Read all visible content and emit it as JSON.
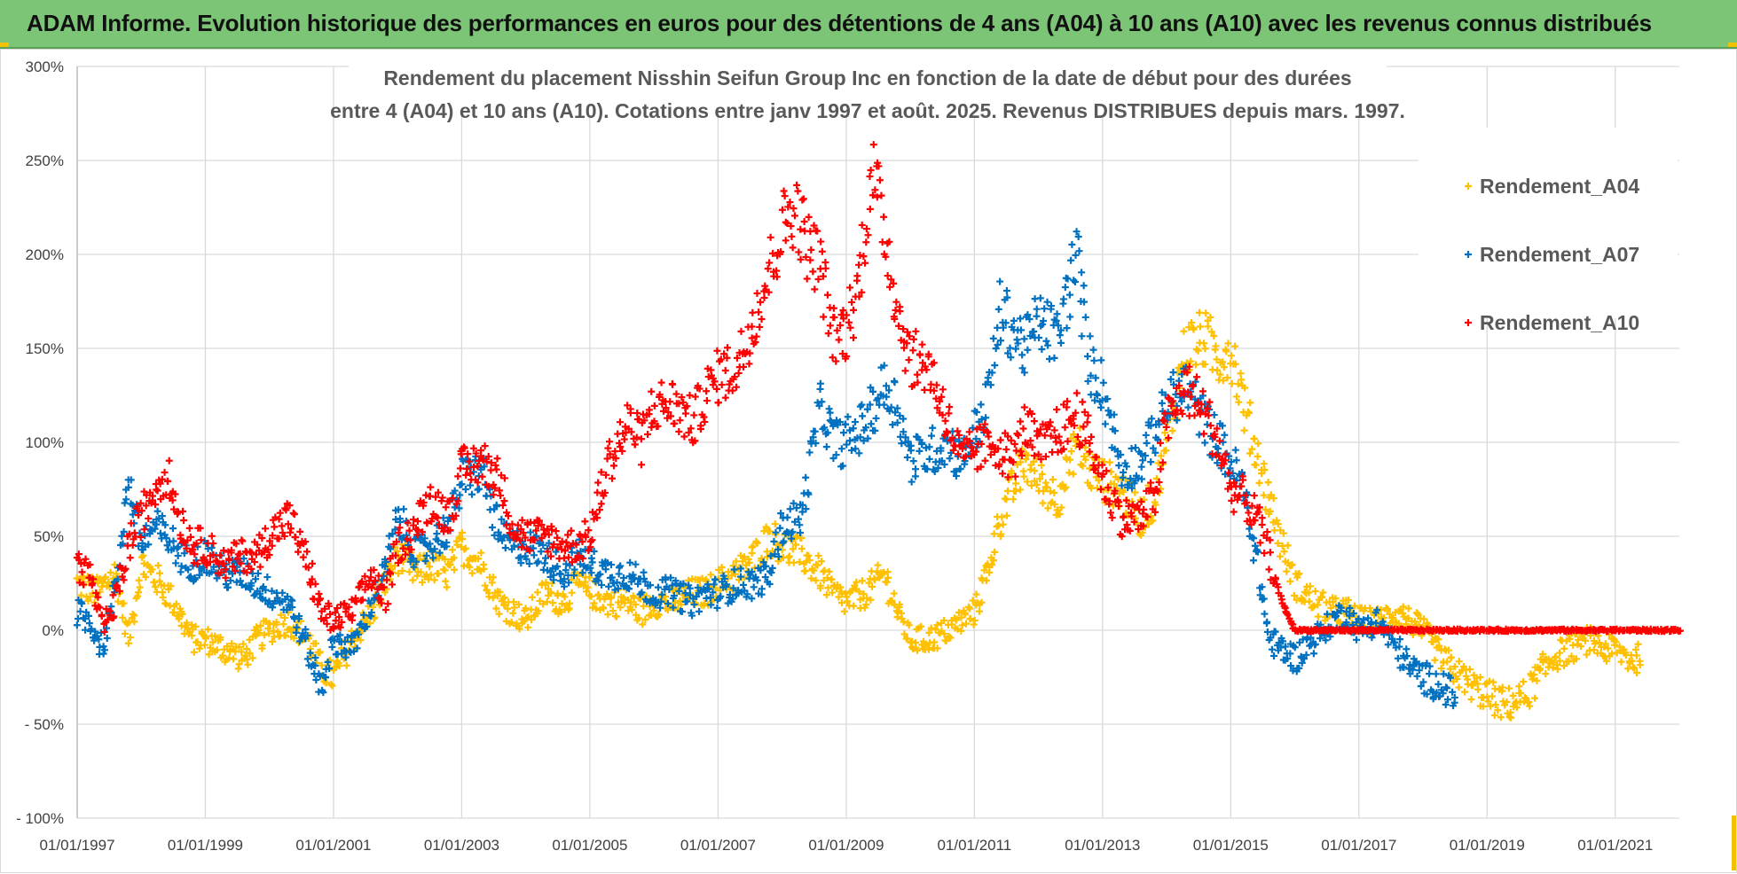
{
  "banner": {
    "title": "ADAM Informe. Evolution historique des performances en euros pour des détentions de 4 ans (A04) à 10 ans (A10) avec les revenus connus distribués"
  },
  "colors": {
    "banner": "#7cc576",
    "A04": "#ffc000",
    "A07": "#0070c0",
    "A10": "#ff0000",
    "grid": "#d9d9d9"
  },
  "chart_data": {
    "type": "scatter",
    "title_lines": [
      "Rendement du placement Nisshin Seifun Group Inc en fonction de la date de début pour des durées",
      "entre 4 (A04) et 10 ans (A10). Cotations entre janv 1997 et août. 2025. Revenus DISTRIBUES depuis mars. 1997."
    ],
    "xlabel": "",
    "ylabel": "",
    "x_tick_labels": [
      "01/01/1997",
      "01/01/1999",
      "01/01/2001",
      "01/01/2003",
      "01/01/2005",
      "01/01/2007",
      "01/01/2009",
      "01/01/2011",
      "01/01/2013",
      "01/01/2015",
      "01/01/2017",
      "01/01/2019",
      "01/01/2021"
    ],
    "xlim": [
      1997.0,
      2022.0
    ],
    "y_tick_values": [
      300,
      250,
      200,
      150,
      100,
      50,
      0,
      -50,
      -100
    ],
    "y_tick_labels": [
      "300%",
      "250%",
      "200%",
      "150%",
      "100%",
      "50%",
      "0%",
      "- 50%",
      "- 100%"
    ],
    "ylim": [
      -100,
      300
    ],
    "grid": true,
    "legend_position": "top-right",
    "marker": "+",
    "series": [
      {
        "name": "Rendement_A04",
        "color": "#ffc000",
        "x": [
          1997.0,
          1997.3,
          1997.6,
          1997.8,
          1998.0,
          1998.3,
          1998.5,
          1998.8,
          1999.0,
          1999.3,
          1999.6,
          1999.8,
          2000.0,
          2000.3,
          2000.6,
          2000.8,
          2001.0,
          2001.3,
          2001.6,
          2001.8,
          2002.0,
          2002.3,
          2002.5,
          2002.8,
          2003.0,
          2003.3,
          2003.6,
          2003.8,
          2004.0,
          2004.3,
          2004.6,
          2004.8,
          2005.0,
          2005.3,
          2005.6,
          2005.8,
          2006.0,
          2006.3,
          2006.6,
          2006.8,
          2007.0,
          2007.3,
          2007.6,
          2007.8,
          2008.0,
          2008.3,
          2008.6,
          2008.8,
          2009.0,
          2009.3,
          2009.6,
          2009.8,
          2010.0,
          2010.3,
          2010.6,
          2010.8,
          2011.0,
          2011.2,
          2011.4,
          2011.6,
          2011.8,
          2012.0,
          2012.3,
          2012.6,
          2012.8,
          2013.0,
          2013.3,
          2013.6,
          2013.8,
          2014.0,
          2014.3,
          2014.6,
          2014.8,
          2015.0,
          2015.2,
          2015.4,
          2015.6,
          2015.8,
          2016.0,
          2016.3,
          2016.6,
          2016.8,
          2017.0,
          2017.3,
          2017.6,
          2017.8,
          2018.0,
          2018.3,
          2018.6,
          2018.8,
          2019.0,
          2019.3,
          2019.6,
          2019.8,
          2020.0,
          2020.3,
          2020.6,
          2020.8,
          2021.0,
          2021.2,
          2021.4
        ],
        "y": [
          25,
          20,
          30,
          -5,
          35,
          25,
          15,
          -5,
          -5,
          -10,
          -15,
          -5,
          0,
          5,
          -5,
          -20,
          -25,
          -5,
          10,
          25,
          40,
          30,
          35,
          30,
          45,
          35,
          15,
          10,
          5,
          20,
          15,
          25,
          20,
          15,
          15,
          10,
          15,
          15,
          20,
          20,
          25,
          30,
          40,
          50,
          45,
          40,
          30,
          20,
          15,
          20,
          30,
          10,
          -5,
          -5,
          0,
          5,
          10,
          30,
          60,
          75,
          90,
          80,
          70,
          100,
          85,
          80,
          75,
          60,
          70,
          100,
          150,
          155,
          145,
          150,
          120,
          95,
          70,
          45,
          25,
          15,
          10,
          10,
          5,
          5,
          10,
          5,
          0,
          -15,
          -25,
          -30,
          -35,
          -40,
          -35,
          -25,
          -15,
          -10,
          -5,
          -10,
          -10,
          -15,
          -15
        ]
      },
      {
        "name": "Rendement_A07",
        "color": "#0070c0",
        "x": [
          1997.0,
          1997.2,
          1997.4,
          1997.6,
          1997.8,
          1998.0,
          1998.2,
          1998.4,
          1998.6,
          1998.8,
          1999.0,
          1999.3,
          1999.6,
          1999.8,
          2000.0,
          2000.3,
          2000.6,
          2000.8,
          2001.0,
          2001.3,
          2001.6,
          2001.8,
          2002.0,
          2002.3,
          2002.5,
          2002.8,
          2003.0,
          2003.3,
          2003.6,
          2003.8,
          2004.0,
          2004.3,
          2004.6,
          2004.8,
          2005.0,
          2005.3,
          2005.6,
          2005.8,
          2006.0,
          2006.3,
          2006.6,
          2006.8,
          2007.0,
          2007.3,
          2007.6,
          2007.8,
          2008.0,
          2008.3,
          2008.6,
          2008.8,
          2009.0,
          2009.3,
          2009.6,
          2009.8,
          2010.0,
          2010.3,
          2010.6,
          2010.8,
          2011.0,
          2011.2,
          2011.4,
          2011.6,
          2011.8,
          2012.0,
          2012.3,
          2012.6,
          2012.8,
          2013.0,
          2013.3,
          2013.6,
          2013.8,
          2014.0,
          2014.3,
          2014.6,
          2014.8,
          2015.0,
          2015.2,
          2015.4,
          2015.6,
          2015.8,
          2016.0,
          2016.3,
          2016.6,
          2016.8,
          2017.0,
          2017.3,
          2017.6,
          2017.8,
          2018.0,
          2018.3,
          2018.5
        ],
        "y": [
          10,
          5,
          -10,
          25,
          80,
          45,
          55,
          50,
          40,
          35,
          40,
          30,
          30,
          25,
          20,
          15,
          -10,
          -30,
          -5,
          -10,
          15,
          30,
          60,
          40,
          45,
          55,
          80,
          85,
          50,
          45,
          45,
          40,
          30,
          40,
          35,
          30,
          30,
          25,
          20,
          20,
          15,
          20,
          20,
          25,
          25,
          30,
          55,
          60,
          120,
          100,
          100,
          110,
          130,
          120,
          90,
          95,
          100,
          90,
          105,
          120,
          170,
          160,
          150,
          165,
          155,
          200,
          140,
          130,
          85,
          90,
          105,
          120,
          130,
          110,
          100,
          90,
          75,
          40,
          -5,
          -10,
          -15,
          -5,
          5,
          10,
          0,
          5,
          -10,
          -20,
          -25,
          -30,
          -35
        ]
      },
      {
        "name": "Rendement_A10",
        "color": "#ff0000",
        "x": [
          1997.0,
          1997.2,
          1997.4,
          1997.6,
          1997.8,
          1998.0,
          1998.2,
          1998.4,
          1998.6,
          1998.8,
          1999.0,
          1999.3,
          1999.6,
          1999.8,
          2000.0,
          2000.3,
          2000.6,
          2000.8,
          2001.0,
          2001.3,
          2001.6,
          2001.8,
          2002.0,
          2002.3,
          2002.5,
          2002.8,
          2003.0,
          2003.3,
          2003.6,
          2003.8,
          2004.0,
          2004.3,
          2004.6,
          2004.8,
          2005.0,
          2005.3,
          2005.6,
          2005.8,
          2006.0,
          2006.3,
          2006.6,
          2006.8,
          2007.0,
          2007.3,
          2007.6,
          2007.8,
          2008.0,
          2008.2,
          2008.4,
          2008.6,
          2008.8,
          2009.0,
          2009.2,
          2009.4,
          2009.6,
          2009.8,
          2010.0,
          2010.3,
          2010.6,
          2010.8,
          2011.0,
          2011.3,
          2011.6,
          2011.8,
          2012.0,
          2012.3,
          2012.6,
          2012.8,
          2013.0,
          2013.3,
          2013.6,
          2013.8,
          2014.0,
          2014.3,
          2014.6,
          2014.8,
          2015.0,
          2015.2,
          2015.4,
          2015.6,
          2015.8,
          2016.0,
          2016.5,
          2017.0,
          2017.5,
          2018.0,
          2018.5,
          2019.0,
          2019.5,
          2020.0,
          2020.5,
          2021.0,
          2021.5,
          2022.0
        ],
        "y": [
          35,
          30,
          0,
          15,
          45,
          60,
          75,
          85,
          60,
          45,
          45,
          35,
          40,
          40,
          50,
          60,
          35,
          10,
          5,
          10,
          30,
          15,
          45,
          55,
          70,
          60,
          85,
          90,
          80,
          55,
          50,
          50,
          45,
          45,
          50,
          90,
          110,
          100,
          120,
          120,
          110,
          125,
          135,
          140,
          170,
          190,
          215,
          225,
          205,
          195,
          155,
          160,
          185,
          245,
          215,
          170,
          145,
          140,
          110,
          90,
          95,
          100,
          90,
          110,
          95,
          105,
          115,
          100,
          80,
          60,
          60,
          70,
          110,
          130,
          115,
          100,
          75,
          70,
          60,
          40,
          15,
          0,
          0,
          0,
          0,
          0,
          0,
          0,
          0,
          0,
          0,
          0,
          0,
          0
        ]
      }
    ]
  }
}
